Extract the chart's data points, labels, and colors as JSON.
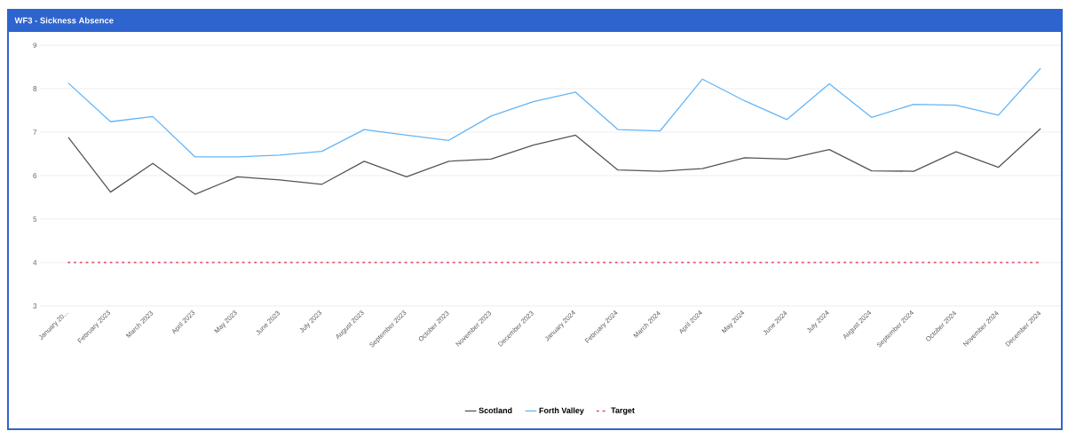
{
  "chart_data": {
    "type": "line",
    "title": "WF3 - Sickness Absence",
    "categories": [
      "January 20...",
      "February 2023",
      "March 2023",
      "April 2023",
      "May 2023",
      "June 2023",
      "July 2023",
      "August 2023",
      "September 2023",
      "October 2023",
      "November 2023",
      "December 2023",
      "January 2024",
      "February 2024",
      "March 2024",
      "April 2024",
      "May 2024",
      "June 2024",
      "July 2024",
      "August 2024",
      "September 2024",
      "October 2024",
      "November 2024",
      "December 2024"
    ],
    "series": [
      {
        "name": "Scotland",
        "color": "#555555",
        "line_style": "solid",
        "values": [
          6.88,
          5.62,
          6.28,
          5.57,
          5.97,
          5.9,
          5.8,
          6.33,
          5.97,
          6.33,
          6.38,
          6.7,
          6.93,
          6.13,
          6.1,
          6.16,
          6.41,
          6.38,
          6.6,
          6.11,
          6.1,
          6.55,
          6.19,
          7.08
        ]
      },
      {
        "name": "Forth Valley",
        "color": "#64b5f6",
        "line_style": "solid",
        "values": [
          8.13,
          7.24,
          7.36,
          6.43,
          6.43,
          6.47,
          6.56,
          7.06,
          6.93,
          6.81,
          7.37,
          7.7,
          7.92,
          7.06,
          7.03,
          8.22,
          7.72,
          7.29,
          8.11,
          7.34,
          7.64,
          7.62,
          7.39,
          8.47
        ]
      },
      {
        "name": "Target",
        "color": "#e8405f",
        "line_style": "dotted",
        "values": [
          4,
          4,
          4,
          4,
          4,
          4,
          4,
          4,
          4,
          4,
          4,
          4,
          4,
          4,
          4,
          4,
          4,
          4,
          4,
          4,
          4,
          4,
          4,
          4
        ]
      }
    ],
    "ylim": [
      3,
      9
    ],
    "yticks": [
      3,
      4,
      5,
      6,
      7,
      8,
      9
    ],
    "grid": "y",
    "legend": "bottom"
  }
}
